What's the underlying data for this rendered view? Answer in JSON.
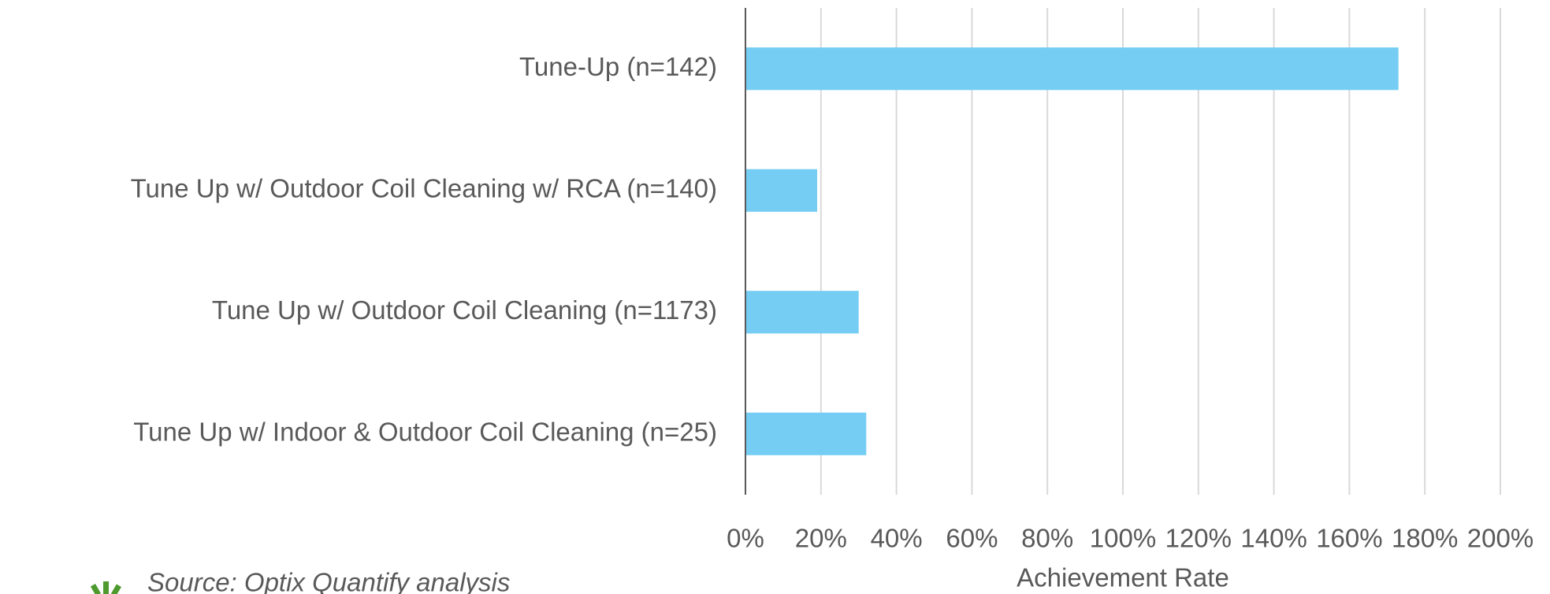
{
  "chart_data": {
    "type": "bar",
    "orientation": "horizontal",
    "categories": [
      "Tune-Up (n=142)",
      "Tune Up w/ Outdoor Coil Cleaning w/ RCA (n=140)",
      "Tune Up w/ Outdoor Coil Cleaning (n=1173)",
      "Tune Up w/ Indoor & Outdoor Coil Cleaning (n=25)"
    ],
    "values": [
      173,
      19,
      30,
      32
    ],
    "color": "#75cdf4",
    "xlabel": "Achievement Rate",
    "xlim": [
      0,
      200
    ],
    "xticks": [
      {
        "value": 0,
        "label": "0%"
      },
      {
        "value": 20,
        "label": "20%"
      },
      {
        "value": 40,
        "label": "40%"
      },
      {
        "value": 60,
        "label": "60%"
      },
      {
        "value": 80,
        "label": "80%"
      },
      {
        "value": 100,
        "label": "100%"
      },
      {
        "value": 120,
        "label": "120%"
      },
      {
        "value": 140,
        "label": "140%"
      },
      {
        "value": 160,
        "label": "160%"
      },
      {
        "value": 180,
        "label": "180%"
      },
      {
        "value": 200,
        "label": "200%"
      }
    ],
    "grid": true,
    "source": "Source: Optix Quantify analysis"
  }
}
